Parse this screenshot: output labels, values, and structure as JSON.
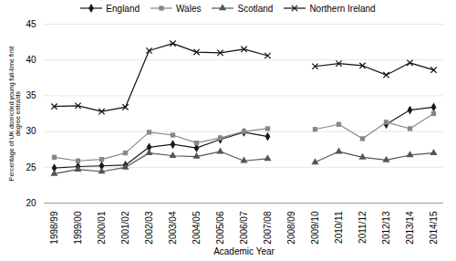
{
  "chart_data": {
    "type": "line",
    "categories": [
      "1998/99",
      "1999/00",
      "2000/01",
      "2001/02",
      "2002/03",
      "2003/04",
      "2004/05",
      "2005/06",
      "2006/07",
      "2007/08",
      "2008/09",
      "2009/10",
      "2010/11",
      "2011/12",
      "2012/13",
      "2013/14",
      "2014/15"
    ],
    "series": [
      {
        "name": "England",
        "color": "#1a1a1a",
        "marker": "diamond",
        "values": [
          24.9,
          25.1,
          25.2,
          25.3,
          27.8,
          28.2,
          27.7,
          28.9,
          29.9,
          29.3,
          null,
          null,
          null,
          null,
          31.0,
          33.0,
          33.4
        ]
      },
      {
        "name": "Wales",
        "color": "#888888",
        "marker": "square",
        "values": [
          26.4,
          25.9,
          26.1,
          27.0,
          29.9,
          29.5,
          28.4,
          29.1,
          30.0,
          30.4,
          null,
          30.3,
          31.0,
          29.0,
          31.3,
          30.4,
          32.5
        ]
      },
      {
        "name": "Scotland",
        "color": "#555555",
        "marker": "triangle",
        "values": [
          24.1,
          24.7,
          24.4,
          25.0,
          27.0,
          26.6,
          26.5,
          27.2,
          25.9,
          26.2,
          null,
          25.7,
          27.2,
          26.4,
          26.0,
          26.7,
          27.0
        ]
      },
      {
        "name": "Northern Ireland",
        "color": "#111111",
        "marker": "x",
        "values": [
          33.5,
          33.6,
          32.8,
          33.4,
          41.3,
          42.3,
          41.1,
          41.0,
          41.5,
          40.6,
          null,
          39.1,
          39.5,
          39.2,
          37.9,
          39.6,
          38.6
        ]
      }
    ],
    "ylim": [
      20.0,
      45.0
    ],
    "yticks": [
      20.0,
      25.0,
      30.0,
      35.0,
      40.0,
      45.0
    ],
    "ylabel": "Percentage of UK domiciled young full-time first\ndegree entrants",
    "xlabel": "Academic Year",
    "grid": true,
    "legend": "top"
  }
}
